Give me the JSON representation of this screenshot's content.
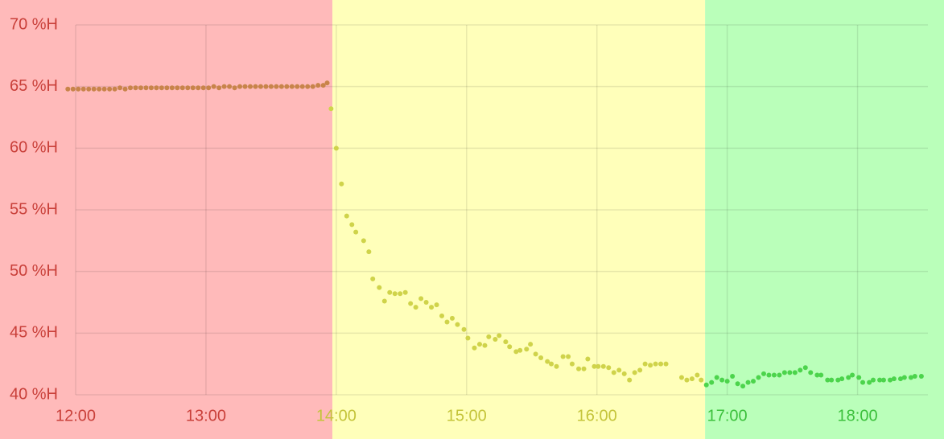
{
  "chart_data": {
    "type": "scatter",
    "xlim": [
      12,
      18.54
    ],
    "ylim": [
      40,
      70
    ],
    "xticks": [
      {
        "value": 12,
        "label": "12:00"
      },
      {
        "value": 13,
        "label": "13:00"
      },
      {
        "value": 14,
        "label": "14:00"
      },
      {
        "value": 15,
        "label": "15:00"
      },
      {
        "value": 16,
        "label": "16:00"
      },
      {
        "value": 17,
        "label": "17:00"
      },
      {
        "value": 18,
        "label": "18:00"
      }
    ],
    "yticks": [
      {
        "value": 40,
        "label": "40 %H"
      },
      {
        "value": 45,
        "label": "45 %H"
      },
      {
        "value": 50,
        "label": "50 %H"
      },
      {
        "value": 55,
        "label": "55 %H"
      },
      {
        "value": 60,
        "label": "60 %H"
      },
      {
        "value": 65,
        "label": "65 %H"
      },
      {
        "value": 70,
        "label": "70 %H"
      }
    ],
    "grid": true,
    "ytick_color": "#c9403a",
    "zones": [
      {
        "to": 13.97,
        "color": "#ffbaba",
        "text_color": "#c9403a"
      },
      {
        "from": 13.97,
        "to": 16.83,
        "color": "#ffffba",
        "text_color": "#c4c43a"
      },
      {
        "from": 16.83,
        "color": "#baffba",
        "text_color": "#3cc03c"
      }
    ],
    "series": [
      {
        "color": "#c8844a",
        "x": [
          11.94,
          11.98,
          12.02,
          12.06,
          12.1,
          12.14,
          12.18,
          12.22,
          12.26,
          12.3,
          12.34,
          12.38,
          12.42,
          12.46,
          12.5,
          12.54,
          12.58,
          12.62,
          12.66,
          12.7,
          12.74,
          12.78,
          12.82,
          12.86,
          12.9,
          12.94,
          12.98,
          13.02,
          13.06,
          13.1,
          13.14,
          13.18,
          13.22,
          13.26,
          13.3,
          13.34,
          13.38,
          13.42,
          13.46,
          13.5,
          13.54,
          13.58,
          13.62,
          13.66,
          13.7,
          13.74,
          13.78,
          13.82,
          13.86,
          13.9,
          13.93
        ],
        "values": [
          64.8,
          64.8,
          64.8,
          64.8,
          64.8,
          64.8,
          64.8,
          64.8,
          64.8,
          64.8,
          64.9,
          64.8,
          64.9,
          64.9,
          64.9,
          64.9,
          64.9,
          64.9,
          64.9,
          64.9,
          64.9,
          64.9,
          64.9,
          64.9,
          64.9,
          64.9,
          64.9,
          64.9,
          65.0,
          64.9,
          65.0,
          65.0,
          64.9,
          65.0,
          65.0,
          65.0,
          65.0,
          65.0,
          65.0,
          65.0,
          65.0,
          65.0,
          65.0,
          65.0,
          65.0,
          65.0,
          65.0,
          65.0,
          65.1,
          65.1,
          65.3
        ]
      },
      {
        "color": "#cfd34a",
        "x": [
          13.96,
          14.0,
          14.04,
          14.08,
          14.12,
          14.15,
          14.21,
          14.25,
          14.28,
          14.33,
          14.37,
          14.41,
          14.45,
          14.49,
          14.53,
          14.57,
          14.61,
          14.65,
          14.69,
          14.73,
          14.77,
          14.81,
          14.85,
          14.89,
          14.93,
          14.98,
          15.01,
          15.06,
          15.1,
          15.14,
          15.17,
          15.22,
          15.25,
          15.3,
          15.33,
          15.38,
          15.41,
          15.46,
          15.49,
          15.53,
          15.57,
          15.62,
          15.65,
          15.69,
          15.74,
          15.78,
          15.81,
          15.86,
          15.9,
          15.93,
          15.98,
          16.01,
          16.05,
          16.09,
          16.13,
          16.17,
          16.21,
          16.25,
          16.29,
          16.33,
          16.37,
          16.41,
          16.45,
          16.49,
          16.53,
          16.65,
          16.69,
          16.73,
          16.77,
          16.8
        ],
        "values": [
          63.2,
          60.0,
          57.1,
          54.5,
          53.8,
          53.2,
          52.5,
          51.6,
          49.4,
          48.7,
          47.6,
          48.3,
          48.2,
          48.2,
          48.3,
          47.4,
          47.1,
          47.8,
          47.5,
          47.1,
          47.3,
          46.4,
          45.9,
          46.2,
          45.7,
          45.3,
          44.6,
          43.8,
          44.1,
          44.0,
          44.7,
          44.5,
          44.8,
          44.3,
          43.9,
          43.5,
          43.6,
          43.7,
          44.1,
          43.3,
          43.0,
          42.7,
          42.5,
          42.3,
          43.1,
          43.1,
          42.5,
          42.1,
          42.1,
          42.9,
          42.3,
          42.3,
          42.3,
          42.2,
          41.8,
          42.0,
          41.7,
          41.2,
          41.8,
          42.0,
          42.5,
          42.4,
          42.5,
          42.5,
          42.5,
          41.4,
          41.2,
          41.3,
          41.6,
          41.2
        ]
      },
      {
        "color": "#4cd44c",
        "x": [
          16.84,
          16.88,
          16.92,
          16.96,
          17.0,
          17.04,
          17.08,
          17.12,
          17.16,
          17.2,
          17.24,
          17.28,
          17.32,
          17.36,
          17.4,
          17.44,
          17.48,
          17.52,
          17.56,
          17.6,
          17.64,
          17.69,
          17.72,
          17.77,
          17.8,
          17.85,
          17.88,
          17.93,
          17.96,
          18.01,
          18.04,
          18.09,
          18.12,
          18.17,
          18.2,
          18.25,
          18.28,
          18.33,
          18.36,
          18.41,
          18.44,
          18.49
        ],
        "values": [
          40.8,
          41.0,
          41.4,
          41.2,
          41.1,
          41.5,
          40.9,
          40.7,
          41.0,
          41.1,
          41.4,
          41.7,
          41.6,
          41.6,
          41.6,
          41.8,
          41.8,
          41.8,
          42.0,
          42.2,
          41.8,
          41.6,
          41.6,
          41.2,
          41.2,
          41.2,
          41.3,
          41.4,
          41.6,
          41.4,
          41.0,
          41.0,
          41.2,
          41.2,
          41.2,
          41.2,
          41.3,
          41.3,
          41.4,
          41.4,
          41.5,
          41.5
        ]
      }
    ]
  }
}
